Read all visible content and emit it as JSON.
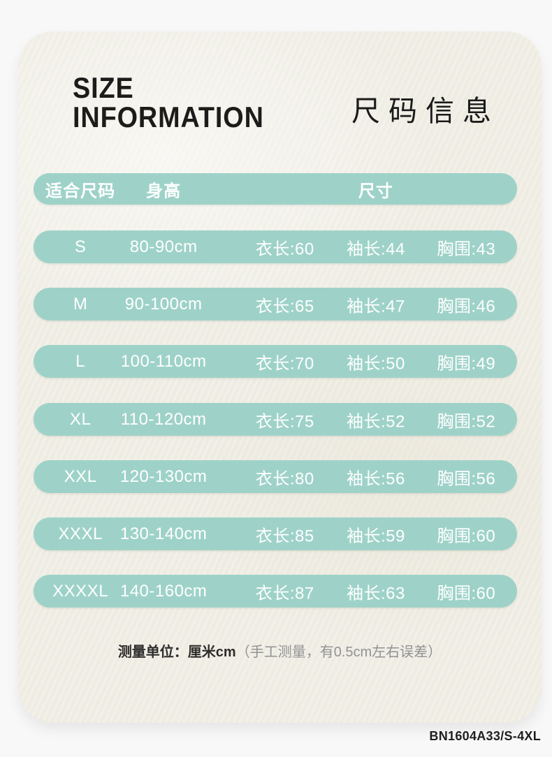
{
  "header": {
    "title_en_line1": "SIZE",
    "title_en_line2": "INFORMATION",
    "title_zh": "尺码信息"
  },
  "size_table": {
    "columns": {
      "size": "适合尺码",
      "height": "身高",
      "measurements": "尺寸"
    },
    "rows": [
      {
        "size": "S",
        "height": "80-90cm",
        "length": "衣长:60",
        "sleeve": "袖长:44",
        "chest": "胸围:43"
      },
      {
        "size": "M",
        "height": "90-100cm",
        "length": "衣长:65",
        "sleeve": "袖长:47",
        "chest": "胸围:46"
      },
      {
        "size": "L",
        "height": "100-110cm",
        "length": "衣长:70",
        "sleeve": "袖长:50",
        "chest": "胸围:49"
      },
      {
        "size": "XL",
        "height": "110-120cm",
        "length": "衣长:75",
        "sleeve": "袖长:52",
        "chest": "胸围:52"
      },
      {
        "size": "XXL",
        "height": "120-130cm",
        "length": "衣长:80",
        "sleeve": "袖长:56",
        "chest": "胸围:56"
      },
      {
        "size": "XXXL",
        "height": "130-140cm",
        "length": "衣长:85",
        "sleeve": "袖长:59",
        "chest": "胸围:60"
      },
      {
        "size": "XXXXL",
        "height": "140-160cm",
        "length": "衣长:87",
        "sleeve": "袖长:63",
        "chest": "胸围:60"
      }
    ]
  },
  "note": {
    "label": "测量单位：厘米cm",
    "detail": "（手工测量，有0.5cm左右误差）"
  },
  "footer": {
    "product_code": "BN1604A33/S-4XL"
  },
  "colors": {
    "accent_teal": "#9ed2c8",
    "card_background": "#f1efe6",
    "page_background": "#f8f8f8",
    "text_dark": "#1d1c1a",
    "text_on_accent": "#ffffff",
    "note_muted": "#929292"
  },
  "chart_data": {
    "type": "table",
    "title": "尺码信息 (SIZE INFORMATION)",
    "columns": [
      "适合尺码",
      "身高",
      "衣长",
      "袖长",
      "胸围"
    ],
    "rows": [
      [
        "S",
        "80-90cm",
        60,
        44,
        43
      ],
      [
        "M",
        "90-100cm",
        65,
        47,
        46
      ],
      [
        "L",
        "100-110cm",
        70,
        50,
        49
      ],
      [
        "XL",
        "110-120cm",
        75,
        52,
        52
      ],
      [
        "XXL",
        "120-130cm",
        80,
        56,
        56
      ],
      [
        "XXXL",
        "130-140cm",
        85,
        59,
        60
      ],
      [
        "XXXXL",
        "140-160cm",
        87,
        63,
        60
      ]
    ],
    "unit": "cm",
    "note": "测量单位：厘米cm（手工测量，有0.5cm左右误差）",
    "legend_position": "none",
    "grid": false
  }
}
